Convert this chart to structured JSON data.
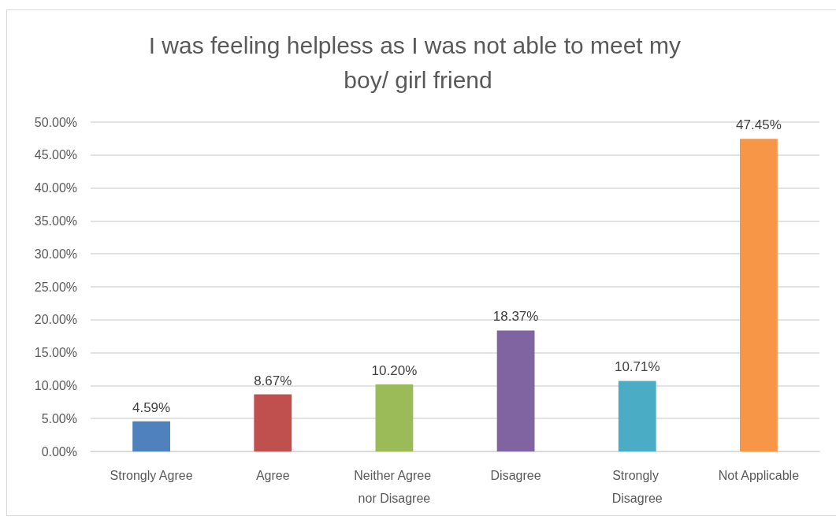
{
  "chart_data": {
    "type": "bar",
    "title": "I was feeling helpless as I was not able to meet my boy/ girl friend",
    "categories": [
      "Strongly Agree",
      "Agree",
      "Neither Agree nor Disagree",
      "Disagree",
      "Strongly Disagree",
      "Not Applicable"
    ],
    "values": [
      4.59,
      8.67,
      10.2,
      18.37,
      10.71,
      47.45
    ],
    "colors": [
      "#4f81bd",
      "#c0504d",
      "#9bbb59",
      "#8064a2",
      "#4bacc6",
      "#f79646"
    ],
    "value_labels": [
      "4.59%",
      "8.67%",
      "10.20%",
      "18.37%",
      "10.71%",
      "47.45%"
    ],
    "ylim": [
      0,
      50
    ],
    "yticks": [
      {
        "value": 0,
        "label": "0.00%"
      },
      {
        "value": 5,
        "label": "5.00%"
      },
      {
        "value": 10,
        "label": "10.00%"
      },
      {
        "value": 15,
        "label": "15.00%"
      },
      {
        "value": 20,
        "label": "20.00%"
      },
      {
        "value": 25,
        "label": "25.00%"
      },
      {
        "value": 30,
        "label": "30.00%"
      },
      {
        "value": 35,
        "label": "35.00%"
      },
      {
        "value": 40,
        "label": "40.00%"
      },
      {
        "value": 45,
        "label": "45.00%"
      },
      {
        "value": 50,
        "label": "50.00%"
      }
    ],
    "grid": "y"
  }
}
